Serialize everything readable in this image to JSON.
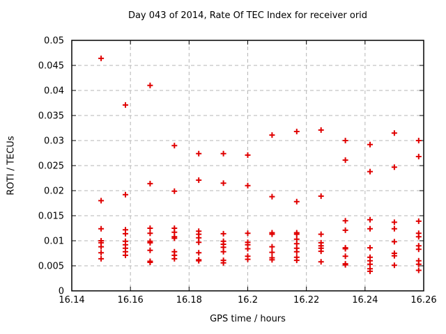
{
  "chart_data": {
    "type": "scatter",
    "title": "Day 043 of 2014, Rate Of TEC Index for receiver orid",
    "xlabel": "GPS time / hours",
    "ylabel": "ROTI / TECUs",
    "xlim": [
      16.14,
      16.26
    ],
    "ylim": [
      0,
      0.05
    ],
    "grid": true,
    "legend_visible": false,
    "marker_shape": "plus",
    "marker_color": "#e00000",
    "grid_color": "#b5b5b5",
    "xticks": [
      {
        "v": 16.14,
        "label": "16.14"
      },
      {
        "v": 16.16,
        "label": "16.16"
      },
      {
        "v": 16.18,
        "label": "16.18"
      },
      {
        "v": 16.2,
        "label": "16.2"
      },
      {
        "v": 16.22,
        "label": "16.22"
      },
      {
        "v": 16.24,
        "label": "16.24"
      },
      {
        "v": 16.26,
        "label": "16.26"
      }
    ],
    "yticks": [
      {
        "v": 0.0,
        "label": "0"
      },
      {
        "v": 0.005,
        "label": "0.005"
      },
      {
        "v": 0.01,
        "label": "0.01"
      },
      {
        "v": 0.015,
        "label": "0.015"
      },
      {
        "v": 0.02,
        "label": "0.02"
      },
      {
        "v": 0.025,
        "label": "0.025"
      },
      {
        "v": 0.03,
        "label": "0.03"
      },
      {
        "v": 0.035,
        "label": "0.035"
      },
      {
        "v": 0.04,
        "label": "0.04"
      },
      {
        "v": 0.045,
        "label": "0.045"
      },
      {
        "v": 0.05,
        "label": "0.05"
      }
    ],
    "columns": [
      {
        "x": 16.15,
        "y": [
          0.0464,
          0.018,
          0.0124,
          0.01,
          0.0096,
          0.0088,
          0.0076,
          0.0064
        ]
      },
      {
        "x": 16.1583,
        "y": [
          0.0371,
          0.0192,
          0.0122,
          0.0114,
          0.0099,
          0.0092,
          0.0085,
          0.0078,
          0.0071
        ]
      },
      {
        "x": 16.1667,
        "y": [
          0.041,
          0.0214,
          0.0125,
          0.0115,
          0.0099,
          0.0096,
          0.0081,
          0.0059,
          0.0057
        ]
      },
      {
        "x": 16.175,
        "y": [
          0.029,
          0.0199,
          0.0125,
          0.0117,
          0.0108,
          0.0105,
          0.0078,
          0.0071,
          0.0064
        ]
      },
      {
        "x": 16.1833,
        "y": [
          0.0274,
          0.0221,
          0.0119,
          0.0113,
          0.0106,
          0.0097,
          0.0076,
          0.0062,
          0.006
        ]
      },
      {
        "x": 16.1917,
        "y": [
          0.0274,
          0.0215,
          0.0114,
          0.0099,
          0.0093,
          0.0087,
          0.0078,
          0.0061,
          0.0056
        ]
      },
      {
        "x": 16.2,
        "y": [
          0.0271,
          0.021,
          0.0115,
          0.0097,
          0.0092,
          0.0084,
          0.0069,
          0.0063
        ]
      },
      {
        "x": 16.2083,
        "y": [
          0.0311,
          0.0188,
          0.0116,
          0.0113,
          0.0088,
          0.0077,
          0.0066,
          0.0062
        ]
      },
      {
        "x": 16.2167,
        "y": [
          0.0318,
          0.0178,
          0.0116,
          0.0113,
          0.0103,
          0.0094,
          0.0085,
          0.0078,
          0.0067,
          0.0061
        ]
      },
      {
        "x": 16.225,
        "y": [
          0.0321,
          0.0189,
          0.0113,
          0.0096,
          0.009,
          0.0085,
          0.0079,
          0.0058
        ]
      },
      {
        "x": 16.2333,
        "y": [
          0.03,
          0.0261,
          0.014,
          0.0121,
          0.0086,
          0.0084,
          0.0069,
          0.0054,
          0.0052
        ]
      },
      {
        "x": 16.2417,
        "y": [
          0.0292,
          0.0238,
          0.0142,
          0.0124,
          0.0086,
          0.0067,
          0.006,
          0.0053,
          0.0044,
          0.0039
        ]
      },
      {
        "x": 16.25,
        "y": [
          0.0315,
          0.0247,
          0.0137,
          0.0124,
          0.0098,
          0.0075,
          0.007,
          0.0051
        ]
      },
      {
        "x": 16.2583,
        "y": [
          0.03,
          0.0268,
          0.0139,
          0.0115,
          0.0108,
          0.009,
          0.0083,
          0.006,
          0.0053,
          0.0041
        ]
      }
    ]
  }
}
